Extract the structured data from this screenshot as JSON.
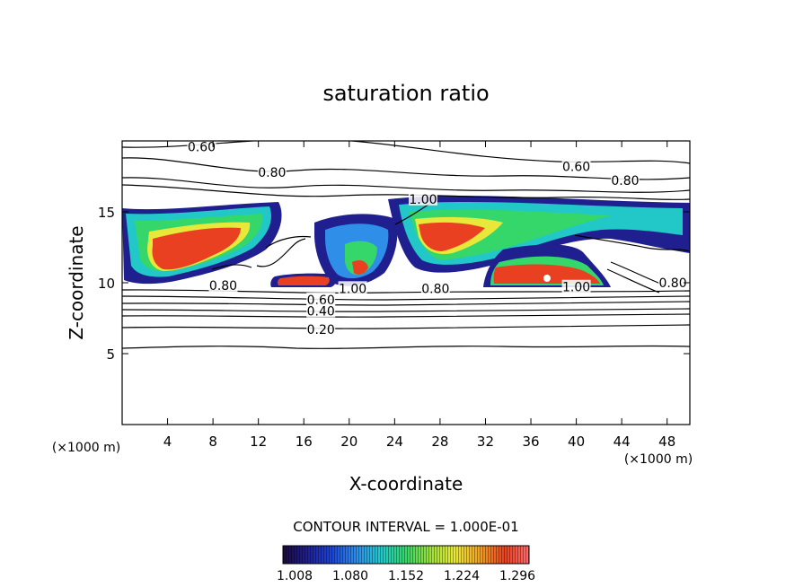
{
  "chart_data": {
    "type": "contour",
    "title": "saturation ratio",
    "xlabel": "X-coordinate",
    "ylabel": "Z-coordinate",
    "x_unit": "(×1000 m)",
    "y_unit": "(×1000 m)",
    "xlim": [
      0,
      50
    ],
    "ylim": [
      0,
      20
    ],
    "x_ticks": [
      "4",
      "8",
      "12",
      "16",
      "20",
      "24",
      "28",
      "32",
      "36",
      "40",
      "44",
      "48"
    ],
    "y_ticks": [
      "5",
      "10",
      "15"
    ],
    "contour_interval_text": "CONTOUR INTERVAL = 1.000E-01",
    "contour_labels": [
      {
        "text": "0.60",
        "x": 7.0,
        "z": 19.6
      },
      {
        "text": "0.80",
        "x": 13.2,
        "z": 17.8
      },
      {
        "text": "0.60",
        "x": 40.0,
        "z": 18.2
      },
      {
        "text": "0.80",
        "x": 44.3,
        "z": 17.2
      },
      {
        "text": "1.00",
        "x": 26.5,
        "z": 15.9
      },
      {
        "text": "0.80",
        "x": 8.9,
        "z": 9.8
      },
      {
        "text": "1.00",
        "x": 20.3,
        "z": 9.6
      },
      {
        "text": "0.60",
        "x": 17.5,
        "z": 8.8
      },
      {
        "text": "0.40",
        "x": 17.5,
        "z": 8.0
      },
      {
        "text": "0.20",
        "x": 17.5,
        "z": 6.7
      },
      {
        "text": "0.80",
        "x": 27.6,
        "z": 9.6
      },
      {
        "text": "1.00",
        "x": 40.0,
        "z": 9.7
      },
      {
        "text": "0.80",
        "x": 48.5,
        "z": 10.0
      }
    ],
    "colorbar": {
      "ticks": [
        "1.008",
        "1.080",
        "1.152",
        "1.224",
        "1.296"
      ],
      "colors": [
        "#1a0a3c",
        "#1f1f8f",
        "#1c45d6",
        "#2f8ee8",
        "#22c8c8",
        "#35d66a",
        "#9ee03a",
        "#e8e83a",
        "#f0a022",
        "#e84020",
        "#ff6a6a"
      ]
    }
  }
}
